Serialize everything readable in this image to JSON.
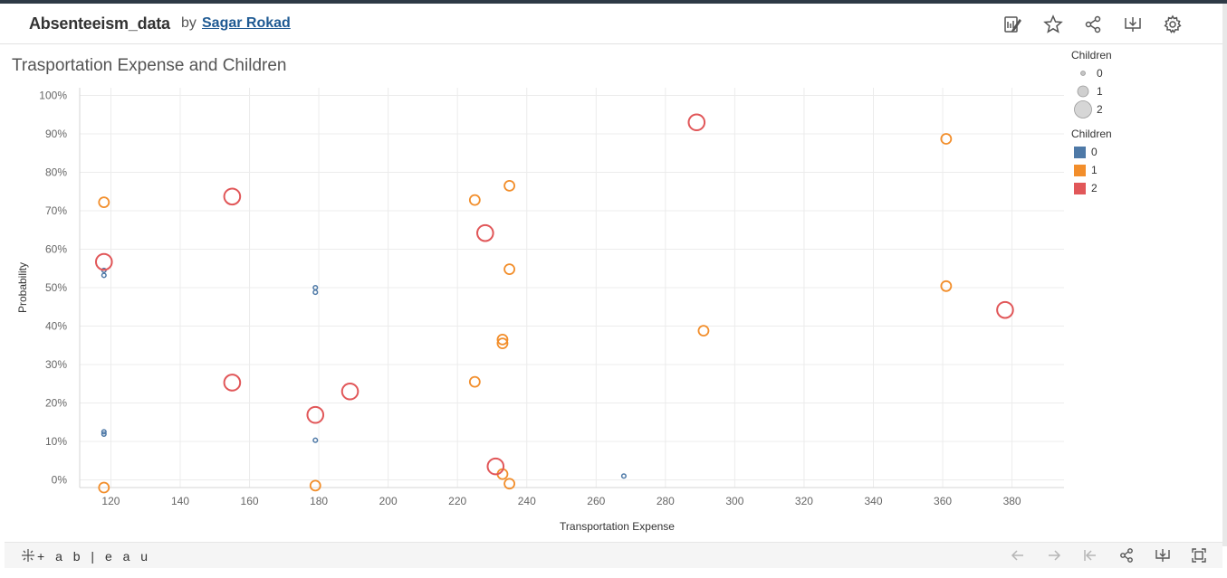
{
  "header": {
    "workbook_title": "Absenteeism_data",
    "by_label": "by",
    "author": "Sagar Rokad",
    "icons": [
      "edit-icon",
      "star-icon",
      "share-icon",
      "download-icon",
      "gear-icon"
    ]
  },
  "viz": {
    "title": "Trasportation Expense and Children"
  },
  "legend_size": {
    "title": "Children",
    "items": [
      "0",
      "1",
      "2"
    ]
  },
  "legend_color": {
    "title": "Children",
    "items": [
      {
        "label": "0",
        "color": "#4e79a7"
      },
      {
        "label": "1",
        "color": "#f28e2b"
      },
      {
        "label": "2",
        "color": "#e15759"
      }
    ]
  },
  "footer": {
    "logo_text": "+ a b | e a u",
    "icons": [
      "back-icon",
      "forward-icon",
      "reset-icon",
      "share-icon",
      "download-icon",
      "fullscreen-icon"
    ]
  },
  "chart_data": {
    "type": "scatter",
    "title": "Trasportation Expense and Children",
    "xlabel": "Transportation Expense",
    "ylabel": "Probability",
    "xlim": [
      111,
      395
    ],
    "ylim": [
      -2,
      102
    ],
    "x_ticks": [
      120,
      140,
      160,
      180,
      200,
      220,
      240,
      260,
      280,
      300,
      320,
      340,
      360,
      380
    ],
    "y_ticks": [
      0,
      10,
      20,
      30,
      40,
      50,
      60,
      70,
      80,
      90,
      100
    ],
    "y_tick_labels": [
      "0%",
      "10%",
      "20%",
      "30%",
      "40%",
      "50%",
      "60%",
      "70%",
      "80%",
      "90%",
      "100%"
    ],
    "x_tick_labels": [
      "120",
      "140",
      "160",
      "180",
      "200",
      "220",
      "240",
      "260",
      "280",
      "300",
      "320",
      "340",
      "360",
      "380"
    ],
    "grid": true,
    "legend_position": "right",
    "series": [
      {
        "name": "0",
        "color": "#4e79a7",
        "size": 0,
        "x": [
          118,
          118,
          118,
          118,
          179,
          179,
          179,
          268
        ],
        "y": [
          54.5,
          53.2,
          12.5,
          11.9,
          50.0,
          48.8,
          10.3,
          1.0
        ]
      },
      {
        "name": "1",
        "color": "#f28e2b",
        "size": 1,
        "x": [
          118,
          118,
          179,
          225,
          225,
          233,
          233,
          233,
          235,
          235,
          235,
          291,
          361,
          361
        ],
        "y": [
          72.2,
          -2.0,
          -1.5,
          72.8,
          25.5,
          36.5,
          35.5,
          1.5,
          76.5,
          54.8,
          -1.0,
          38.8,
          88.7,
          50.4
        ]
      },
      {
        "name": "2",
        "color": "#e15759",
        "size": 2,
        "x": [
          118,
          155,
          155,
          179,
          189,
          228,
          231,
          289,
          378
        ],
        "y": [
          56.7,
          73.7,
          25.3,
          16.9,
          23.0,
          64.2,
          3.5,
          93.0,
          44.2
        ]
      }
    ]
  }
}
